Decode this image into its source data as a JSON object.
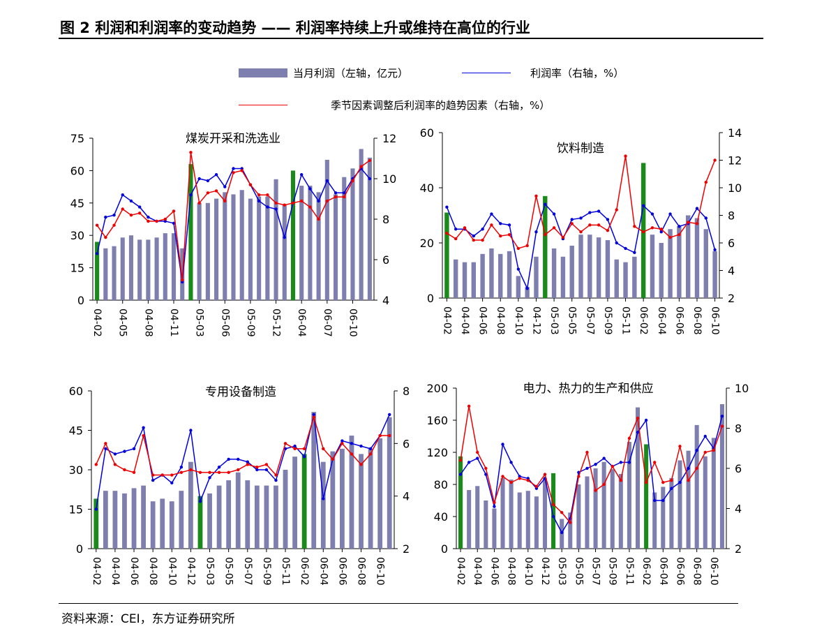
{
  "figure_title": "图 2  利润和利润率的变动趋势 —— 利润率持续上升或维持在高位的行业",
  "legend": {
    "bar_label": "当月利润（左轴，亿元）",
    "blue_label": "利润率（右轴，%）",
    "red_label": "季节因素调整后利润率的趋势因素（右轴，%）"
  },
  "colors": {
    "bar": "#7f7faf",
    "bar_highlight": "#1a8a1a",
    "blue": "#0000dd",
    "red": "#ee0000"
  },
  "source": "资料来源：CEI，东方证券研究所",
  "chart_data": [
    {
      "type": "bar",
      "title": "煤炭开采和洗选业",
      "x_tick_labels": [
        "04-02",
        "04-05",
        "04-08",
        "04-11",
        "05-03",
        "05-06",
        "05-09",
        "05-12",
        "06-04",
        "06-07",
        "06-10"
      ],
      "ylim_left": [
        0,
        75
      ],
      "yticks_left": [
        "0",
        "15",
        "30",
        "45",
        "60",
        "75"
      ],
      "ylim_right": [
        4,
        12
      ],
      "yticks_right": [
        "4",
        "6",
        "8",
        "10",
        "12"
      ],
      "highlight_index": [
        0,
        11,
        23
      ],
      "bars": [
        27,
        24,
        25,
        29,
        30,
        28,
        28,
        29,
        31,
        31,
        24,
        63,
        45,
        45,
        47,
        50,
        49,
        51,
        47,
        48,
        48,
        56,
        44,
        60,
        53,
        53,
        50,
        65,
        49,
        57,
        61,
        70,
        66
      ],
      "series": [
        {
          "name": "利润率",
          "values": [
            6.3,
            8.1,
            8.2,
            9.2,
            8.9,
            8.6,
            8.1,
            7.9,
            7.9,
            7.8,
            4.9,
            9.2,
            10.0,
            9.9,
            10.2,
            9.6,
            10.5,
            10.5,
            9.7,
            8.9,
            8.6,
            8.5,
            7.1,
            8.8,
            10.2,
            9.5,
            8.9,
            9.9,
            9.3,
            9.3,
            10.0,
            10.5,
            10.0
          ]
        },
        {
          "name": "趋势因素",
          "values": [
            7.7,
            7.1,
            7.7,
            8.5,
            8.2,
            8.3,
            7.9,
            7.9,
            8.0,
            8.4,
            5.0,
            11.3,
            8.8,
            9.3,
            9.4,
            8.9,
            10.3,
            10.4,
            9.7,
            9.2,
            9.2,
            8.8,
            8.7,
            8.8,
            8.9,
            8.6,
            8.0,
            8.9,
            9.1,
            9.1,
            9.9,
            10.6,
            10.9
          ]
        }
      ]
    },
    {
      "type": "bar",
      "title": "饮料制造",
      "x_tick_labels": [
        "04-02",
        "04-04",
        "04-06",
        "04-08",
        "04-10",
        "04-12",
        "05-03",
        "05-05",
        "05-07",
        "05-09",
        "05-11",
        "06-02",
        "06-04",
        "06-06",
        "06-08",
        "06-10"
      ],
      "ylim_left": [
        0,
        60
      ],
      "yticks_left": [
        "0",
        "20",
        "40",
        "60"
      ],
      "ylim_right": [
        2,
        14
      ],
      "yticks_right": [
        "2",
        "4",
        "6",
        "8",
        "10",
        "12",
        "14"
      ],
      "highlight_index": [
        0,
        11,
        22
      ],
      "bars": [
        31,
        14,
        13,
        13,
        16,
        18,
        16,
        17,
        8,
        4,
        15,
        37,
        18,
        15,
        19,
        23,
        23,
        22,
        21,
        14,
        13,
        15,
        49,
        23,
        20,
        25,
        26,
        30,
        29,
        25,
        17
      ],
      "series": [
        {
          "name": "利润率",
          "values": [
            8.6,
            7.0,
            7.0,
            6.5,
            7.0,
            8.1,
            7.4,
            7.3,
            4.1,
            2.7,
            6.8,
            8.8,
            8.1,
            6.3,
            7.7,
            7.8,
            8.2,
            8.3,
            7.7,
            6.0,
            5.6,
            5.3,
            8.7,
            8.1,
            6.8,
            8.1,
            7.2,
            7.4,
            8.5,
            7.8,
            5.5
          ]
        },
        {
          "name": "趋势因素",
          "values": [
            6.7,
            6.3,
            7.1,
            6.2,
            6.2,
            7.3,
            6.5,
            6.6,
            5.6,
            5.8,
            9.4,
            6.6,
            7.1,
            6.4,
            7.4,
            6.8,
            7.3,
            7.3,
            6.9,
            8.4,
            12.3,
            7.2,
            6.8,
            7.1,
            7.0,
            6.4,
            6.6,
            7.5,
            7.4,
            10.4,
            12.0
          ]
        }
      ]
    },
    {
      "type": "bar",
      "title": "专用设备制造",
      "x_tick_labels": [
        "04-02",
        "04-04",
        "04-06",
        "04-08",
        "04-10",
        "04-12",
        "05-03",
        "05-05",
        "05-07",
        "05-09",
        "05-11",
        "06-02",
        "06-04",
        "06-06",
        "06-08",
        "06-10"
      ],
      "ylim_left": [
        0,
        60
      ],
      "yticks_left": [
        "0",
        "15",
        "30",
        "45",
        "60"
      ],
      "ylim_right": [
        2,
        8
      ],
      "yticks_right": [
        "2",
        "4",
        "6",
        "8"
      ],
      "highlight_index": [
        0,
        11,
        22
      ],
      "bars": [
        19,
        22,
        22,
        21,
        23,
        24,
        18,
        19,
        18,
        22,
        33,
        20,
        21,
        24,
        26,
        29,
        26,
        24,
        24,
        24,
        30,
        35,
        36,
        52,
        33,
        37,
        38,
        43,
        36,
        38,
        42,
        50
      ],
      "series": [
        {
          "name": "利润率",
          "values": [
            3.5,
            5.8,
            5.6,
            5.7,
            5.8,
            6.6,
            4.6,
            4.8,
            4.5,
            5.1,
            6.5,
            3.8,
            4.7,
            5.1,
            5.4,
            5.4,
            5.3,
            5.0,
            5.0,
            4.6,
            5.8,
            5.9,
            5.5,
            7.1,
            3.9,
            5.4,
            6.1,
            6.0,
            5.9,
            5.8,
            6.3,
            7.1
          ]
        },
        {
          "name": "趋势因素",
          "values": [
            5.2,
            6.0,
            5.2,
            5.0,
            4.9,
            6.3,
            4.8,
            4.8,
            4.8,
            4.9,
            5.0,
            4.9,
            4.9,
            4.9,
            4.9,
            5.0,
            5.2,
            5.1,
            5.2,
            4.8,
            6.0,
            5.8,
            5.8,
            7.0,
            5.8,
            5.4,
            6.0,
            5.6,
            5.2,
            5.6,
            6.3,
            6.3
          ]
        }
      ]
    },
    {
      "type": "bar",
      "title": "电力、热力的生产和供应",
      "x_tick_labels": [
        "04-02",
        "04-04",
        "04-06",
        "04-08",
        "04-10",
        "04-12",
        "05-03",
        "05-05",
        "05-07",
        "05-09",
        "05-11",
        "06-02",
        "06-04",
        "06-06",
        "06-08",
        "06-10"
      ],
      "ylim_left": [
        0,
        200
      ],
      "yticks_left": [
        "0",
        "40",
        "80",
        "120",
        "160",
        "200"
      ],
      "ylim_right": [
        2,
        10
      ],
      "yticks_right": [
        "2",
        "4",
        "6",
        "8",
        "10"
      ],
      "highlight_index": [
        0,
        11,
        22
      ],
      "bars": [
        115,
        73,
        78,
        60,
        50,
        88,
        86,
        70,
        72,
        65,
        88,
        94,
        37,
        45,
        80,
        90,
        100,
        108,
        99,
        93,
        133,
        176,
        130,
        70,
        77,
        88,
        110,
        122,
        154,
        115,
        138,
        180
      ],
      "series": [
        {
          "name": "利润率",
          "values": [
            5.7,
            6.3,
            6.5,
            5.7,
            4.1,
            7.2,
            6.3,
            5.6,
            5.5,
            5.0,
            5.5,
            3.6,
            2.8,
            3.5,
            5.8,
            6.0,
            6.2,
            6.5,
            6.1,
            6.3,
            6.3,
            7.8,
            8.4,
            4.4,
            4.4,
            5.0,
            5.3,
            6.0,
            6.9,
            7.6,
            7.0,
            8.6
          ]
        },
        {
          "name": "趋势因素",
          "values": [
            6.4,
            9.1,
            6.8,
            6.0,
            4.3,
            5.6,
            5.3,
            5.5,
            5.4,
            5.1,
            5.7,
            4.2,
            3.8,
            3.3,
            5.6,
            6.8,
            4.9,
            5.2,
            6.1,
            5.4,
            7.5,
            8.5,
            5.3,
            6.3,
            5.3,
            5.4,
            7.1,
            5.4,
            6.0,
            6.8,
            6.9,
            8.1
          ]
        }
      ]
    }
  ]
}
